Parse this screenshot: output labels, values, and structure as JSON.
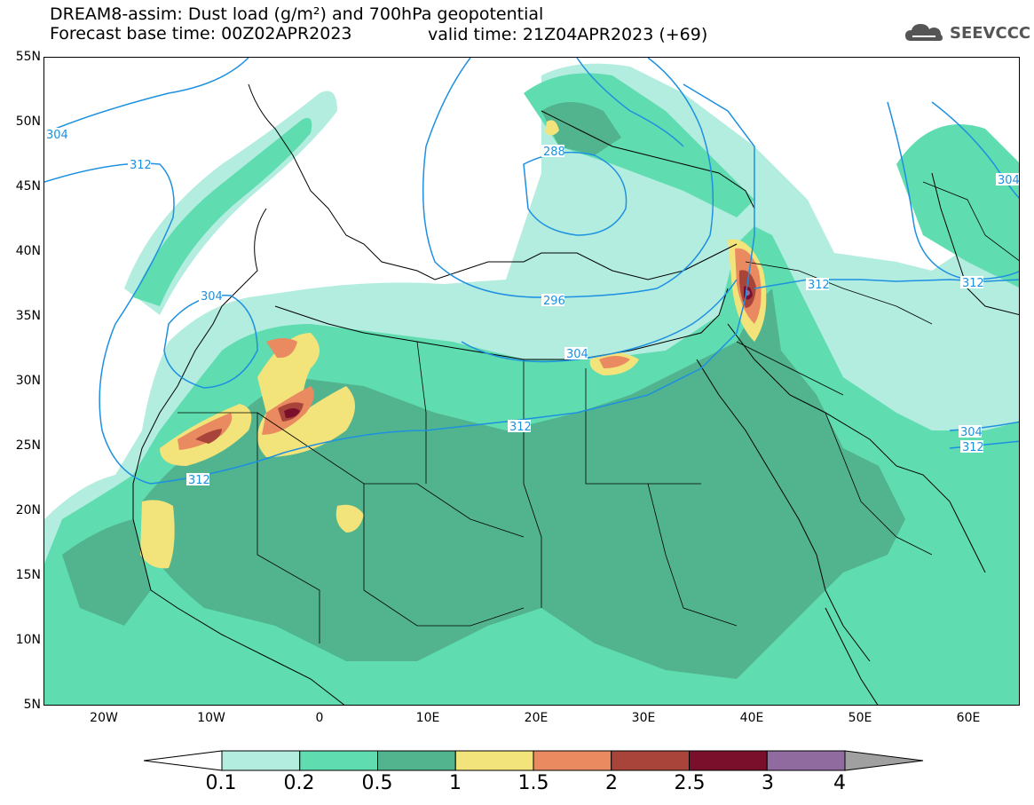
{
  "title": {
    "line1": "DREAM8-assim: Dust load (g/m²) and 700hPa geopotential",
    "line2": "Forecast base time: 00Z02APR2023",
    "line2b": "valid time: 21Z04APR2023 (+69)"
  },
  "logo": {
    "text": "SEEVCCC",
    "icon": "cloud-icon"
  },
  "axes": {
    "lat_labels": [
      "55N",
      "50N",
      "45N",
      "40N",
      "35N",
      "30N",
      "25N",
      "20N",
      "15N",
      "10N",
      "5N"
    ],
    "lon_labels": [
      "20W",
      "10W",
      "0",
      "10E",
      "20E",
      "30E",
      "40E",
      "50E",
      "60E"
    ],
    "lat_range": [
      5,
      55
    ],
    "lon_range": [
      -25,
      65
    ]
  },
  "colorbar": {
    "levels": [
      "0.1",
      "0.2",
      "0.5",
      "1",
      "1.5",
      "2",
      "2.5",
      "3",
      "4"
    ],
    "colors": [
      "#b3ede0",
      "#5fdcb0",
      "#52b48e",
      "#f3e37b",
      "#e98a60",
      "#a8443a",
      "#7a0f2c",
      "#8f6b9f",
      "#a0a0a0"
    ]
  },
  "contours": {
    "color": "#1e90e0",
    "labels": [
      "304",
      "312",
      "288",
      "296",
      "304",
      "312",
      "304",
      "312",
      "312",
      "312",
      "304",
      "304",
      "312",
      "312"
    ]
  }
}
